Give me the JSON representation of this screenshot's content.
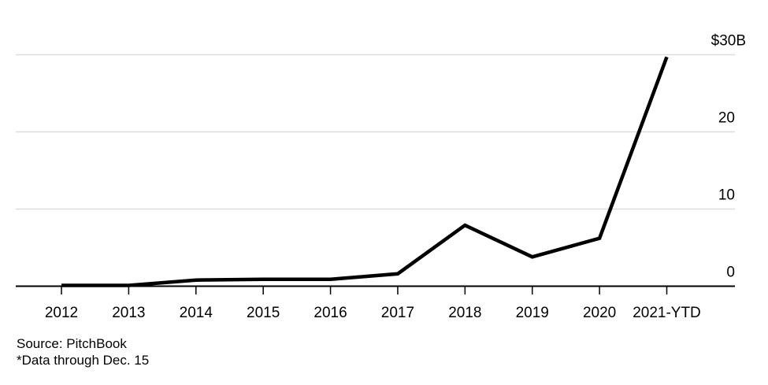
{
  "chart_data": {
    "type": "line",
    "title": "",
    "categories": [
      "2012",
      "2013",
      "2014",
      "2015",
      "2016",
      "2017",
      "2018",
      "2019",
      "2020",
      "2021-YTD"
    ],
    "values": [
      0.1,
      0.1,
      0.8,
      0.9,
      0.9,
      1.6,
      7.9,
      3.8,
      6.2,
      29.7
    ],
    "unit": "billions of US dollars",
    "y_ticks": [
      {
        "value": 30,
        "label": "$30B"
      },
      {
        "value": 20,
        "label": "20"
      },
      {
        "value": 10,
        "label": "10"
      },
      {
        "value": 0,
        "label": "0"
      }
    ],
    "ylim": [
      0,
      30
    ],
    "xlabel": "",
    "ylabel": "",
    "legend": "none",
    "grid": "horizontal",
    "colors": {
      "line": "#000000",
      "gridline": "#dcdcdc",
      "axis": "#000000",
      "text": "#000000",
      "background": "#ffffff"
    }
  },
  "footer": {
    "source": "Source: PitchBook",
    "note": "*Data through Dec. 15"
  }
}
